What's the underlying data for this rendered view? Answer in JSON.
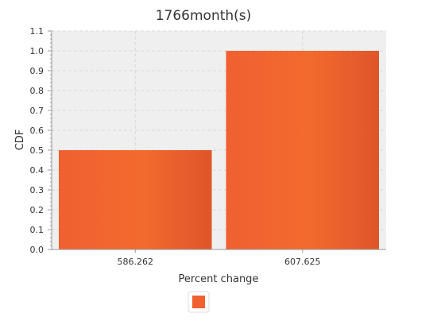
{
  "chart_data": {
    "type": "bar",
    "title": "1766month(s)",
    "xlabel": "Percent change",
    "ylabel": "CDF",
    "categories": [
      "586.262",
      "607.625"
    ],
    "series": [
      {
        "values": [
          0.5,
          1.0
        ]
      }
    ],
    "ylim": [
      0,
      1.1
    ],
    "yticks": [
      0.0,
      0.1,
      0.2,
      0.3,
      0.4,
      0.5,
      0.6,
      0.7,
      0.8,
      0.9,
      1.0,
      1.1
    ],
    "grid": true,
    "legend": "bottom-center",
    "colors": {
      "bar": "#f06030",
      "bar_light": "#f36a2e",
      "bar_dark": "#e0552a",
      "plot_background": "#efefef",
      "grid": "#d8d8d8",
      "axis": "#999999",
      "text": "#333333"
    }
  }
}
